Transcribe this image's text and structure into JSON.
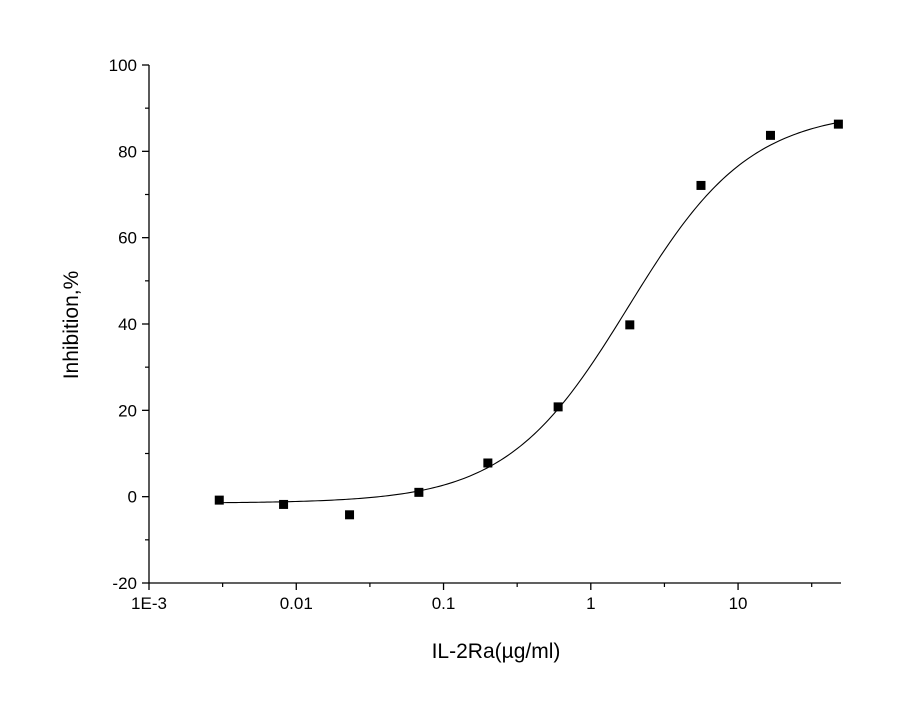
{
  "chart_data": {
    "type": "scatter",
    "title": "",
    "xlabel": "IL-2Ra(µg/ml)",
    "ylabel": "Inhibition,%",
    "x_scale": "log",
    "xlim": [
      0.001,
      50
    ],
    "ylim": [
      -20,
      100
    ],
    "x_ticks": [
      {
        "value": 0.001,
        "label": "1E-3"
      },
      {
        "value": 0.01,
        "label": "0.01"
      },
      {
        "value": 0.1,
        "label": "0.1"
      },
      {
        "value": 1,
        "label": "1"
      },
      {
        "value": 10,
        "label": "10"
      }
    ],
    "y_ticks": [
      {
        "value": -20,
        "label": "-20"
      },
      {
        "value": 0,
        "label": "0"
      },
      {
        "value": 20,
        "label": "20"
      },
      {
        "value": 40,
        "label": "40"
      },
      {
        "value": 60,
        "label": "60"
      },
      {
        "value": 80,
        "label": "80"
      },
      {
        "value": 100,
        "label": "100"
      }
    ],
    "grid": false,
    "series": [
      {
        "marker": "square",
        "color": "#000000",
        "points": [
          {
            "x": 0.003,
            "y": -0.8
          },
          {
            "x": 0.0082,
            "y": -1.8
          },
          {
            "x": 0.023,
            "y": -4.2
          },
          {
            "x": 0.068,
            "y": 1.0
          },
          {
            "x": 0.2,
            "y": 7.8
          },
          {
            "x": 0.6,
            "y": 20.8
          },
          {
            "x": 1.84,
            "y": 39.8
          },
          {
            "x": 5.6,
            "y": 72.1
          },
          {
            "x": 16.6,
            "y": 83.7
          },
          {
            "x": 48,
            "y": 86.3
          }
        ]
      }
    ],
    "fit_curve": {
      "type": "four-parameter logistic",
      "color": "#000000",
      "bottom": -1.5,
      "top": 89.5,
      "ec50": 1.8,
      "hill": 1.05
    }
  }
}
